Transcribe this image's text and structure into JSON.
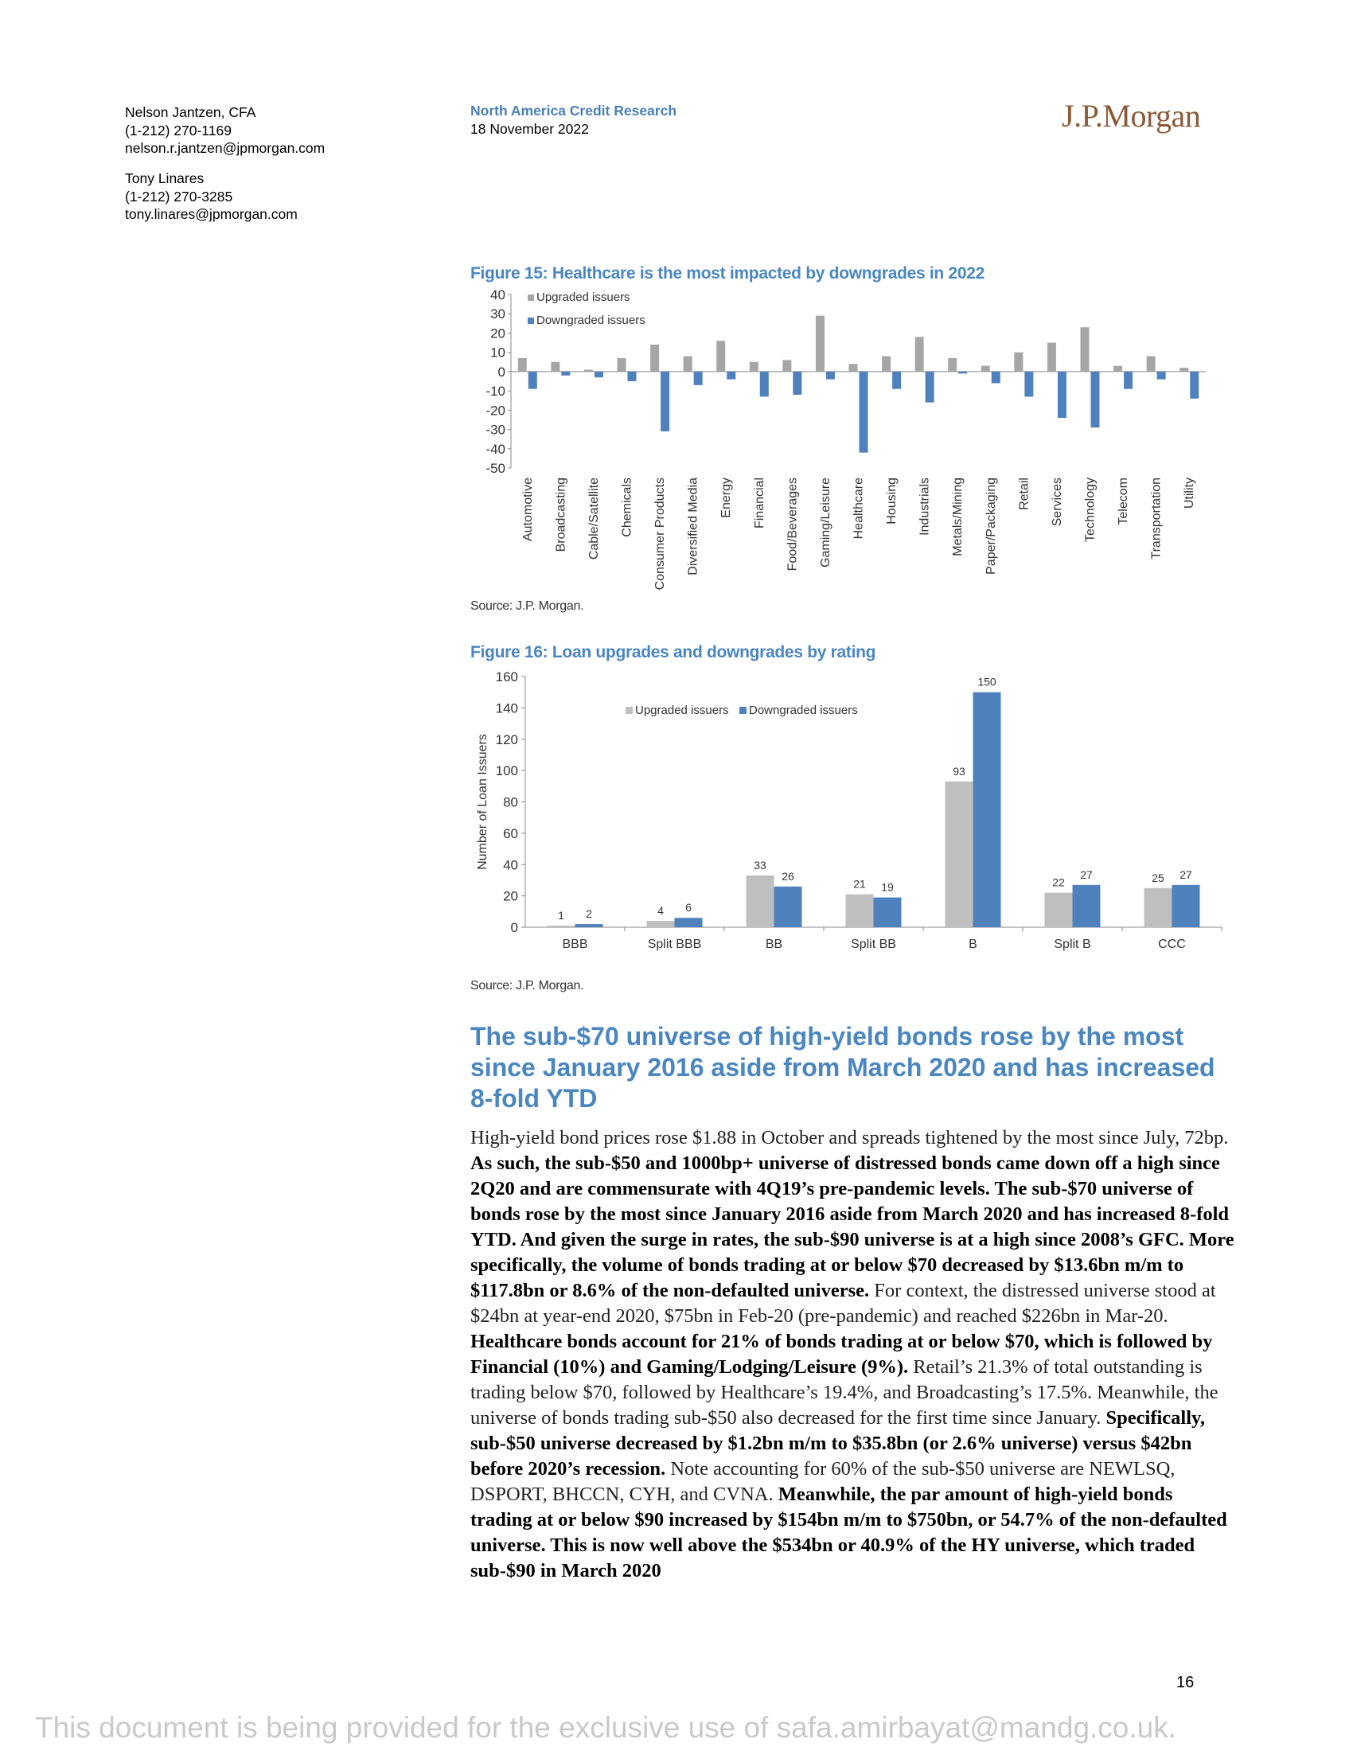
{
  "header": {
    "authors": [
      {
        "name": "Nelson Jantzen, CFA",
        "phone": "(1-212) 270-1169",
        "email": "nelson.r.jantzen@jpmorgan.com"
      },
      {
        "name": "Tony Linares",
        "phone": "(1-212) 270-3285",
        "email": "tony.linares@jpmorgan.com"
      }
    ],
    "section": "North America Credit Research",
    "date": "18 November 2022",
    "logo_text": "J.P.Morgan"
  },
  "figure15": {
    "title": "Figure 15: Healthcare is the most impacted by downgrades in 2022",
    "source": "Source: J.P. Morgan."
  },
  "figure16": {
    "title": "Figure 16: Loan upgrades and downgrades by rating",
    "source": "Source: J.P. Morgan."
  },
  "chart_data": [
    {
      "type": "bar",
      "title": "Figure 15: Healthcare is the most impacted by downgrades in 2022",
      "categories": [
        "Automotive",
        "Broadcasting",
        "Cable/Satellite",
        "Chemicals",
        "Consumer Products",
        "Diversified Media",
        "Energy",
        "Financial",
        "Food/Beverages",
        "Gaming/Leisure",
        "Healthcare",
        "Housing",
        "Industrials",
        "Metals/Mining",
        "Paper/Packaging",
        "Retail",
        "Services",
        "Technology",
        "Telecom",
        "Transportation",
        "Utility"
      ],
      "series": [
        {
          "name": "Upgraded issuers",
          "color": "#a6a6a6",
          "values": [
            7,
            5,
            1,
            7,
            14,
            8,
            16,
            5,
            6,
            29,
            4,
            8,
            18,
            7,
            3,
            10,
            15,
            23,
            3,
            8,
            2
          ]
        },
        {
          "name": "Downgraded issuers",
          "color": "#4f81bd",
          "values": [
            -9,
            -2,
            -3,
            -5,
            -31,
            -7,
            -4,
            -13,
            -12,
            -4,
            -42,
            -9,
            -16,
            -1,
            -6,
            -13,
            -24,
            -29,
            -9,
            -4,
            -14
          ]
        }
      ],
      "yticks": [
        "40",
        "30",
        "20",
        "10",
        "0",
        "-10",
        "-20",
        "-30",
        "-40",
        "-50"
      ],
      "ylim": [
        -50,
        40
      ],
      "legend": "top-left",
      "grid": false
    },
    {
      "type": "bar",
      "title": "Figure 16: Loan upgrades and downgrades by rating",
      "categories": [
        "BBB",
        "Split BBB",
        "BB",
        "Split BB",
        "B",
        "Split B",
        "CCC"
      ],
      "series": [
        {
          "name": "Upgraded issuers",
          "color": "#bfbfbf",
          "values": [
            1,
            4,
            33,
            21,
            93,
            22,
            25
          ]
        },
        {
          "name": "Downgraded issuers",
          "color": "#4f81bd",
          "values": [
            2,
            6,
            26,
            19,
            150,
            27,
            27
          ]
        }
      ],
      "ylabel": "Number of Loan Issuers",
      "yticks": [
        "0",
        "20",
        "40",
        "60",
        "80",
        "100",
        "120",
        "140",
        "160"
      ],
      "ylim": [
        0,
        160
      ],
      "legend": "top-center",
      "grid": false
    }
  ],
  "article": {
    "heading": "The sub-$70 universe of high-yield bonds rose by the most since January 2016 aside from March 2020 and has increased 8-fold YTD",
    "p1": "High-yield bond prices rose $1.88 in October and spreads tightened by the most since July, 72bp. ",
    "b1": "As such, the sub-$50 and 1000bp+ universe of distressed bonds came down off a high since 2Q20 and are commensurate with 4Q19’s pre-pandemic levels. The sub-$70 universe of bonds rose by the most since January 2016 aside from March 2020 and has increased 8-fold YTD. And given the surge in rates, the sub-$90 universe is at a high since 2008’s GFC. More specifically, the volume of bonds trading at or below $70 decreased by $13.6bn m/m to $117.8bn or 8.6% of the non-defaulted universe.",
    "p2": " For context, the distressed universe stood at $24bn at year-end 2020, $75bn in Feb-20 (pre-pandemic) and reached $226bn in Mar-20. ",
    "b2": "Healthcare bonds account for 21% of bonds trading at or below $70, which is followed by Financial (10%) and Gaming/Lodging/Leisure (9%).",
    "p3": " Retail’s 21.3% of total outstanding is trading below $70, followed by Healthcare’s 19.4%, and Broadcasting’s 17.5%. Meanwhile, the universe of bonds trading sub-$50 also decreased for the first time since January. ",
    "b3": "Specifically, sub-$50 universe decreased by $1.2bn m/m to $35.8bn (or 2.6% universe) versus $42bn before 2020’s recession.",
    "p4": " Note accounting for 60% of the sub-$50 universe are NEWLSQ, DSPORT, BHCCN, CYH, and CVNA. ",
    "b4": "Meanwhile, the par amount of high-yield bonds trading at or below $90 increased by $154bn m/m to $750bn, or 54.7% of the non-defaulted universe. This is now well above the $534bn or 40.9% of the HY universe, which traded sub-$90 in March 2020"
  },
  "page_number": "16",
  "footer": "This document is being provided for the exclusive use of safa.amirbayat@mandg.co.uk."
}
